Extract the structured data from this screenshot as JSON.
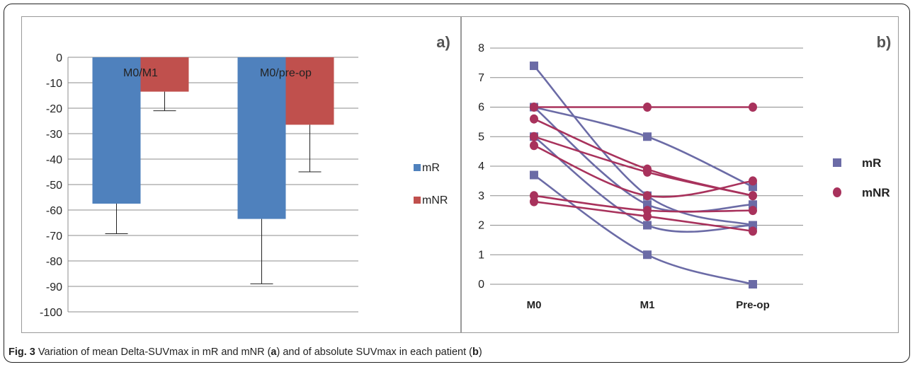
{
  "caption": {
    "fig_label": "Fig. 3",
    "part1": "Variation of mean Delta-SUVmax in mR and mNR (",
    "a": "a",
    "part2": ") and of absolute SUVmax in each patient (",
    "b": "b",
    "part3": ")"
  },
  "colors": {
    "mR": "#4f81bd",
    "mNR": "#c0504d",
    "mR_line": "#6b6ba6",
    "mNR_line": "#a8325c",
    "grid": "#8c8c8c",
    "frame": "#222222"
  },
  "chart_data": [
    {
      "type": "bar",
      "panel_label": "a)",
      "categories": [
        "M0/M1",
        "M0/pre-op"
      ],
      "series": [
        {
          "name": "mR",
          "values": [
            -57.5,
            -63.5
          ],
          "error": [
            11.8,
            25.5
          ]
        },
        {
          "name": "mNR",
          "values": [
            -13.5,
            -26.5
          ],
          "error": [
            7.5,
            18.5
          ]
        }
      ],
      "ylim": [
        -100,
        0
      ],
      "yticks": [
        0,
        -10,
        -20,
        -30,
        -40,
        -50,
        -60,
        -70,
        -80,
        -90,
        -100
      ],
      "grid": true,
      "legend": "right"
    },
    {
      "type": "line",
      "panel_label": "b)",
      "categories": [
        "M0",
        "M1",
        "Pre-op"
      ],
      "ylim": [
        0,
        8
      ],
      "yticks": [
        0,
        1,
        2,
        3,
        4,
        5,
        6,
        7,
        8
      ],
      "grid": true,
      "legend": "right",
      "series": [
        {
          "group": "mR",
          "values": [
            7.4,
            3.0,
            2.0
          ]
        },
        {
          "group": "mR",
          "values": [
            6.0,
            5.0,
            3.3
          ]
        },
        {
          "group": "mR",
          "values": [
            6.0,
            2.7,
            2.7
          ]
        },
        {
          "group": "mR",
          "values": [
            5.0,
            2.0,
            2.0
          ]
        },
        {
          "group": "mR",
          "values": [
            3.7,
            1.0,
            0.0
          ]
        },
        {
          "group": "mNR",
          "values": [
            6.0,
            6.0,
            6.0
          ]
        },
        {
          "group": "mNR",
          "values": [
            5.6,
            3.9,
            3.0
          ]
        },
        {
          "group": "mNR",
          "values": [
            5.0,
            3.8,
            3.0
          ]
        },
        {
          "group": "mNR",
          "values": [
            4.7,
            3.0,
            3.5
          ]
        },
        {
          "group": "mNR",
          "values": [
            3.0,
            2.5,
            2.5
          ]
        },
        {
          "group": "mNR",
          "values": [
            2.8,
            2.3,
            1.8
          ]
        }
      ],
      "legend_entries": [
        "mR",
        "mNR"
      ]
    }
  ]
}
